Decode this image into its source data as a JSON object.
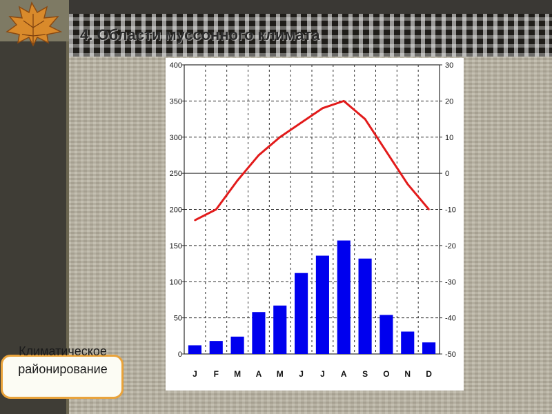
{
  "slide": {
    "title": "4. Области муссонного климата",
    "caption": "Климатическое районирование"
  },
  "colors": {
    "bars": "#0000ee",
    "line": "#e21b1b",
    "grid": "#2b2b2b"
  },
  "chart_data": {
    "type": "bar+line",
    "categories": [
      "J",
      "F",
      "M",
      "A",
      "M",
      "J",
      "J",
      "A",
      "S",
      "O",
      "N",
      "D"
    ],
    "series": [
      {
        "type": "bar",
        "axis": "left",
        "values": [
          12,
          18,
          24,
          58,
          67,
          112,
          136,
          157,
          132,
          54,
          31,
          16
        ]
      },
      {
        "type": "line",
        "axis": "right",
        "values": [
          -13,
          -10,
          -2,
          5,
          10,
          14,
          18,
          20,
          15,
          6,
          -3,
          -10
        ]
      }
    ],
    "y_left": {
      "min": 0,
      "max": 400,
      "ticks": [
        0,
        50,
        100,
        150,
        200,
        250,
        300,
        350,
        400
      ]
    },
    "y_right": {
      "min": -50,
      "max": 30,
      "ticks": [
        -50,
        -40,
        -30,
        -20,
        -10,
        0,
        10,
        20,
        30
      ]
    },
    "grid": true
  }
}
